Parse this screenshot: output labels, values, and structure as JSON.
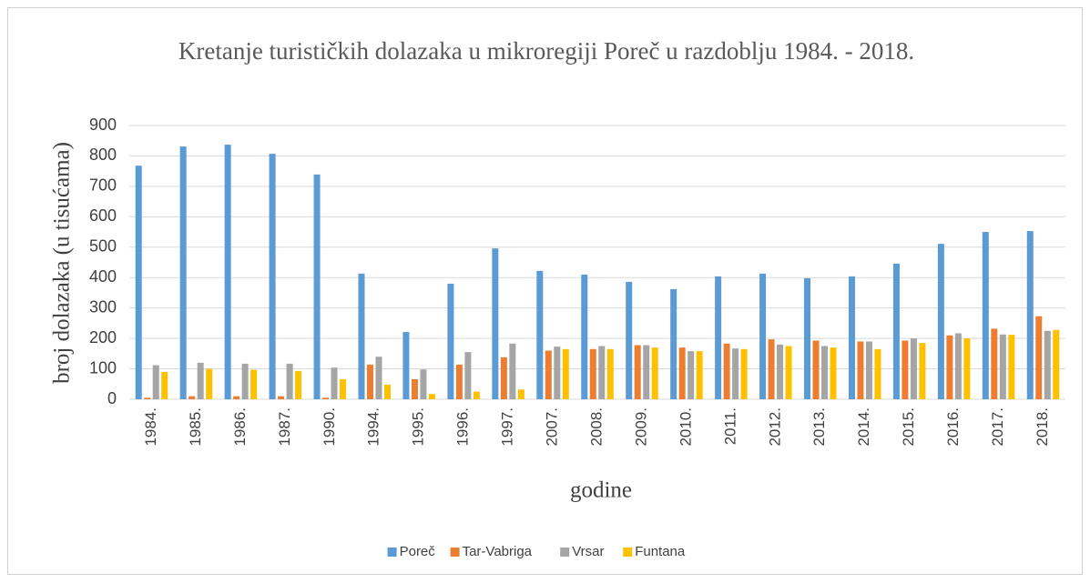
{
  "chart_data": {
    "type": "bar",
    "title": "Kretanje turističkih  dolazaka u mikroregiji Poreč u razdoblju 1984. - 2018.",
    "x_label": "godine",
    "y_label": "broj dolazaka (u tisućama)",
    "categories": [
      "1984.",
      "1985.",
      "1986.",
      "1987.",
      "1990.",
      "1994.",
      "1995.",
      "1996.",
      "1997.",
      "2007.",
      "2008.",
      "2009.",
      "2010.",
      "2011.",
      "2012.",
      "2013.",
      "2014.",
      "2015.",
      "2016.",
      "2017.",
      "2018."
    ],
    "series": [
      {
        "name": "Poreč",
        "color": "#5b9bd5",
        "values": [
          768,
          831,
          837,
          807,
          739,
          413,
          221,
          380,
          496,
          422,
          410,
          386,
          362,
          404,
          413,
          398,
          404,
          446,
          511,
          550,
          553
        ]
      },
      {
        "name": "Tar-Vabriga",
        "color": "#ed7d31",
        "values": [
          5,
          10,
          10,
          10,
          5,
          114,
          66,
          114,
          138,
          160,
          165,
          178,
          170,
          183,
          197,
          193,
          190,
          193,
          210,
          232,
          273
        ]
      },
      {
        "name": "Vrsar",
        "color": "#a5a5a5",
        "values": [
          112,
          120,
          117,
          117,
          104,
          140,
          98,
          155,
          183,
          173,
          175,
          178,
          158,
          167,
          180,
          175,
          190,
          200,
          217,
          213,
          225
        ]
      },
      {
        "name": "Funtana",
        "color": "#ffc000",
        "values": [
          90,
          100,
          97,
          93,
          66,
          48,
          17,
          25,
          32,
          165,
          165,
          170,
          158,
          165,
          175,
          170,
          165,
          185,
          200,
          212,
          228
        ]
      }
    ],
    "ylim": [
      0,
      900
    ],
    "yticks": [
      0,
      100,
      200,
      300,
      400,
      500,
      600,
      700,
      800,
      900
    ],
    "grid": true,
    "legend": "bottom"
  }
}
